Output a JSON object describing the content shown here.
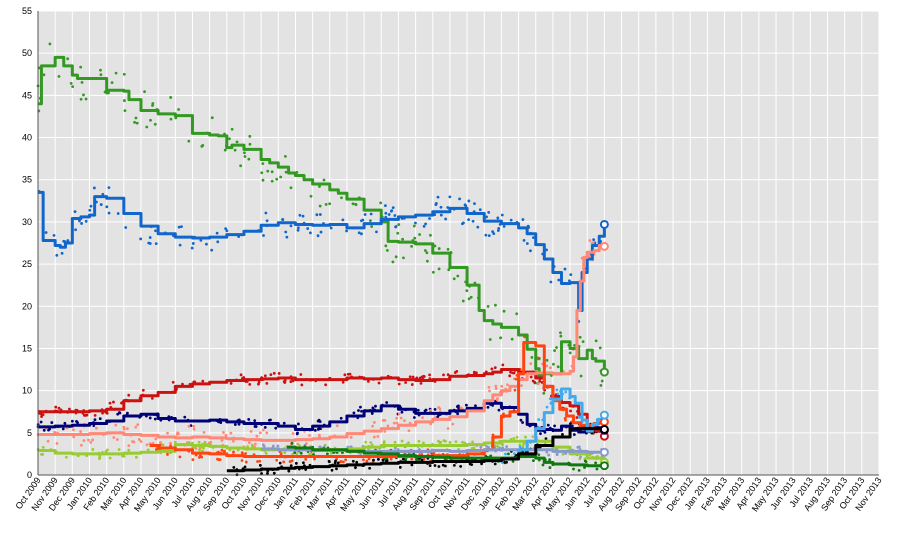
{
  "chart_data": {
    "type": "line",
    "title": "",
    "xlabel": "",
    "ylabel": "",
    "ylim": [
      0,
      55
    ],
    "yticks": [
      0,
      5,
      10,
      15,
      20,
      25,
      30,
      35,
      40,
      45,
      50,
      55
    ],
    "grid": true,
    "legend": "none",
    "xrange": [
      "Oct 2009",
      "Nov 2013"
    ],
    "xticks": [
      "Oct 2009",
      "Nov 2009",
      "Dec 2009",
      "Jan 2010",
      "Feb 2010",
      "Mar 2010",
      "Apr 2010",
      "May 2010",
      "Jun 2010",
      "Jul 2010",
      "Aug 2010",
      "Sep 2010",
      "Oct 2010",
      "Nov 2010",
      "Dec 2010",
      "Jan 2011",
      "Feb 2011",
      "Mar 2011",
      "Apr 2011",
      "May 2011",
      "Jun 2011",
      "Jul 2011",
      "Aug 2011",
      "Sep 2011",
      "Oct 2011",
      "Nov 2011",
      "Dec 2011",
      "Jan 2012",
      "Feb 2012",
      "Mar 2012",
      "Apr 2012",
      "May 2012",
      "Jun 2012",
      "Jul 2012",
      "Aug 2012",
      "Sep 2012",
      "Oct 2012",
      "Nov 2012",
      "Dec 2012",
      "Jan 2013",
      "Feb 2013",
      "Mar 2013",
      "Apr 2013",
      "May 2013",
      "Jun 2013",
      "Jul 2013",
      "Aug 2013",
      "Sep 2013",
      "Oct 2013",
      "Nov 2013"
    ],
    "series": [
      {
        "color": "#339922",
        "x": [
          0,
          0.2,
          1,
          1.5,
          2,
          2.3,
          3,
          4,
          4.1,
          5,
          5.3,
          6,
          7,
          8,
          9,
          10,
          10.5,
          11,
          11.3,
          12,
          13,
          13.5,
          14,
          14.6,
          15,
          15.5,
          16,
          17,
          17.5,
          18,
          19,
          20,
          20.4,
          21,
          22,
          23,
          24,
          25,
          25.7,
          26,
          26.5,
          27,
          28,
          28.5,
          29,
          29.2,
          29.5,
          30,
          30.5,
          31,
          31.5,
          32,
          32.3,
          32.5,
          33
        ],
        "values": [
          44,
          48.5,
          49.5,
          48.5,
          47.4,
          47,
          47,
          45.3,
          45.6,
          45.5,
          44.5,
          43.2,
          42.8,
          42.6,
          40.5,
          40.3,
          40.2,
          38.8,
          39.1,
          38.6,
          37.4,
          37,
          36.5,
          35.8,
          35.5,
          35,
          34.5,
          33.8,
          33.4,
          32.7,
          31.4,
          30,
          27.7,
          27.6,
          27.4,
          26.3,
          24.6,
          22.5,
          19.5,
          18.3,
          17.9,
          17.5,
          16.6,
          14.9,
          12.6,
          11.8,
          12,
          12,
          15.8,
          15,
          13.8,
          14.8,
          13.8,
          13.5,
          12.2
        ]
      },
      {
        "color": "#1166cc",
        "x": [
          0,
          0.3,
          1,
          1.3,
          1.6,
          2,
          2.5,
          3,
          3.3,
          3.5,
          4,
          5,
          6,
          7,
          8,
          9,
          10,
          11,
          12,
          13,
          14,
          15,
          16,
          17,
          18,
          19,
          20,
          21,
          22,
          23,
          24,
          25,
          26,
          27,
          28,
          28.5,
          29,
          29.5,
          30,
          30.5,
          31,
          31.5,
          31.7,
          32,
          32.3,
          32.7,
          33
        ],
        "values": [
          33.5,
          27.8,
          27.2,
          27,
          27.5,
          30.4,
          30.6,
          30.8,
          33,
          33,
          32.8,
          31,
          29.5,
          28.6,
          28.2,
          28.1,
          28.2,
          28.5,
          28.9,
          29.6,
          29.9,
          29.7,
          29.6,
          29.7,
          29.3,
          29.8,
          30.3,
          30.6,
          30.8,
          31.2,
          31.6,
          31,
          30.1,
          29.8,
          29.3,
          28.6,
          27.3,
          25.6,
          24,
          22.7,
          22.8,
          19.5,
          24,
          25.6,
          27.2,
          28.3,
          29.7
        ]
      },
      {
        "color": "#cc1111",
        "x": [
          0,
          1,
          2,
          3,
          4,
          5,
          6,
          7,
          8,
          9,
          10,
          11,
          12,
          13,
          14,
          15,
          16,
          17,
          18,
          19,
          20,
          21,
          22,
          23,
          24,
          25,
          26,
          26.5,
          27,
          28,
          29,
          29.5,
          30,
          30.5,
          31,
          31.5,
          32,
          32.5,
          33
        ],
        "values": [
          7.5,
          7.5,
          7.5,
          7.6,
          7.8,
          8.8,
          9.4,
          9.8,
          10.5,
          10.8,
          11,
          11.2,
          11.3,
          11.4,
          11.5,
          11.3,
          11.3,
          11.3,
          11.5,
          11.4,
          11.5,
          11.3,
          11.2,
          11.3,
          11.7,
          11.8,
          12,
          12.2,
          12.5,
          12.2,
          11.5,
          10.5,
          9.3,
          8.6,
          8.2,
          7.2,
          5.6,
          5.2,
          4.6
        ]
      },
      {
        "color": "#000077",
        "x": [
          0,
          1,
          2,
          3,
          4,
          5,
          6,
          7,
          8,
          9,
          10,
          11,
          12,
          13,
          14,
          15,
          16,
          17,
          18,
          19,
          20,
          21,
          22,
          23,
          24,
          25,
          26,
          27,
          28,
          28.5,
          29,
          29.5,
          30,
          30.5,
          31,
          31.5,
          32,
          32.5,
          33
        ],
        "values": [
          5.7,
          5.8,
          5.9,
          6.1,
          6.4,
          7,
          7.2,
          6.7,
          6.4,
          6.4,
          6.5,
          6.3,
          6.1,
          6.1,
          5.8,
          5.4,
          5.8,
          6.3,
          7,
          7.6,
          8.2,
          7.8,
          7.3,
          7.3,
          7.6,
          7.9,
          8.5,
          8,
          7.2,
          6,
          5.3,
          5.4,
          5.3,
          5.8,
          5.3,
          5.1,
          5.6,
          5.6,
          5.3
        ]
      },
      {
        "color": "#ff8877",
        "x": [
          0,
          1,
          2,
          3,
          4,
          5,
          6,
          7,
          8,
          9,
          10,
          11,
          12,
          13,
          14,
          15,
          16,
          17,
          18,
          19,
          20,
          21,
          22,
          23,
          24,
          25,
          26,
          26.5,
          27,
          27.5,
          28,
          28.5,
          29,
          29.5,
          30,
          30.5,
          31,
          31.2,
          31.4,
          31.6,
          31.8,
          32,
          32.4,
          32.7,
          33
        ],
        "values": [
          4.8,
          4.8,
          4.8,
          4.9,
          5,
          4.8,
          4.7,
          4.5,
          4.4,
          4.5,
          4.4,
          4.3,
          4.2,
          4.1,
          4.1,
          4.2,
          4.3,
          4.5,
          4.9,
          5.2,
          5.5,
          5.9,
          6.3,
          6.6,
          6.9,
          7.6,
          8.8,
          9.5,
          10,
          10.5,
          11.3,
          12,
          12.1,
          12.1,
          12,
          12,
          12.3,
          14,
          19.5,
          23,
          25.8,
          26.4,
          26.6,
          27.2,
          27.1
        ]
      },
      {
        "color": "#99cc33",
        "x": [
          0,
          1,
          2,
          3,
          4,
          5,
          6,
          7,
          8,
          9,
          10,
          11,
          12,
          13,
          14,
          15,
          16,
          17,
          18,
          19,
          20,
          21,
          22,
          23,
          24,
          25,
          26,
          27,
          28,
          29,
          30,
          31,
          32,
          33
        ],
        "values": [
          2.9,
          2.6,
          2.5,
          2.5,
          2.5,
          2.6,
          2.7,
          2.8,
          3.6,
          3.5,
          3.4,
          3.2,
          3.1,
          3,
          3,
          3,
          3,
          3,
          3.1,
          3.3,
          3.5,
          3.5,
          3.5,
          3.5,
          3.5,
          3.6,
          3.8,
          4,
          4,
          4,
          3.3,
          2.5,
          2,
          1.5
        ]
      },
      {
        "color": "#ff4411",
        "x": [
          6.5,
          7,
          8,
          9,
          10,
          11,
          12,
          13,
          14,
          15,
          16,
          17,
          18,
          19,
          20,
          21,
          22,
          23,
          24,
          25,
          26,
          26.5,
          27,
          27.5,
          28,
          28.3,
          28.5,
          29,
          29.5,
          30,
          30.4,
          30.8,
          31.2,
          31.6,
          32,
          32.4,
          32.7,
          33
        ],
        "values": [
          3.5,
          3.2,
          3,
          2.6,
          2.5,
          2.3,
          2.2,
          2.2,
          2.2,
          2.2,
          2.2,
          2.2,
          2.2,
          2.2,
          2.2,
          2.2,
          2.2,
          2.3,
          2.3,
          2.5,
          3,
          4.5,
          7,
          7.5,
          12,
          15.7,
          15.7,
          15.3,
          10.5,
          8.8,
          7.8,
          7,
          6.2,
          5.9,
          5.9,
          6.1,
          6.2,
          6.3
        ]
      },
      {
        "color": "#8899cc",
        "x": [
          13,
          14,
          15,
          16,
          17,
          18,
          19,
          20,
          21,
          22,
          23,
          24,
          25,
          26,
          27,
          28,
          29,
          30,
          31,
          32,
          33
        ],
        "values": [
          3.1,
          3,
          3,
          2.9,
          2.9,
          2.9,
          2.8,
          2.8,
          2.8,
          2.8,
          2.9,
          2.8,
          2.9,
          3,
          3,
          3,
          3,
          2.8,
          2.8,
          2.7,
          2.7
        ]
      },
      {
        "color": "#44aaee",
        "x": [
          27,
          27.5,
          28,
          28.5,
          29,
          29.5,
          30,
          30.5,
          31,
          31.3,
          31.7,
          32,
          32.3,
          32.6,
          33
        ],
        "values": [
          2,
          2,
          3,
          4,
          5.5,
          7.4,
          9,
          10.2,
          9.3,
          8.5,
          6.5,
          5.2,
          6,
          6.6,
          7.1
        ]
      },
      {
        "color": "#117711",
        "x": [
          14.5,
          15,
          16,
          17,
          18,
          19,
          20,
          21,
          22,
          23,
          24,
          25,
          26,
          27,
          28,
          29,
          29.5,
          30,
          31,
          32,
          33
        ],
        "values": [
          3.3,
          3.2,
          3,
          3,
          2.8,
          2.6,
          2.5,
          2.3,
          2.2,
          2.1,
          2,
          2,
          2,
          2,
          2.2,
          2,
          1.5,
          1.3,
          1.2,
          1.1,
          1.1
        ]
      },
      {
        "color": "#000000",
        "x": [
          11,
          12,
          13,
          14,
          15,
          16,
          17,
          18,
          19,
          20,
          21,
          22,
          23,
          24,
          25,
          26,
          27,
          28,
          29,
          30,
          31,
          32,
          33
        ],
        "values": [
          0.5,
          0.6,
          0.7,
          0.8,
          0.9,
          1,
          1.1,
          1.2,
          1.3,
          1.4,
          1.5,
          1.5,
          1.6,
          1.6,
          1.6,
          1.7,
          1.9,
          2.5,
          3.5,
          4.5,
          5.5,
          5.5,
          5.4
        ]
      }
    ]
  }
}
